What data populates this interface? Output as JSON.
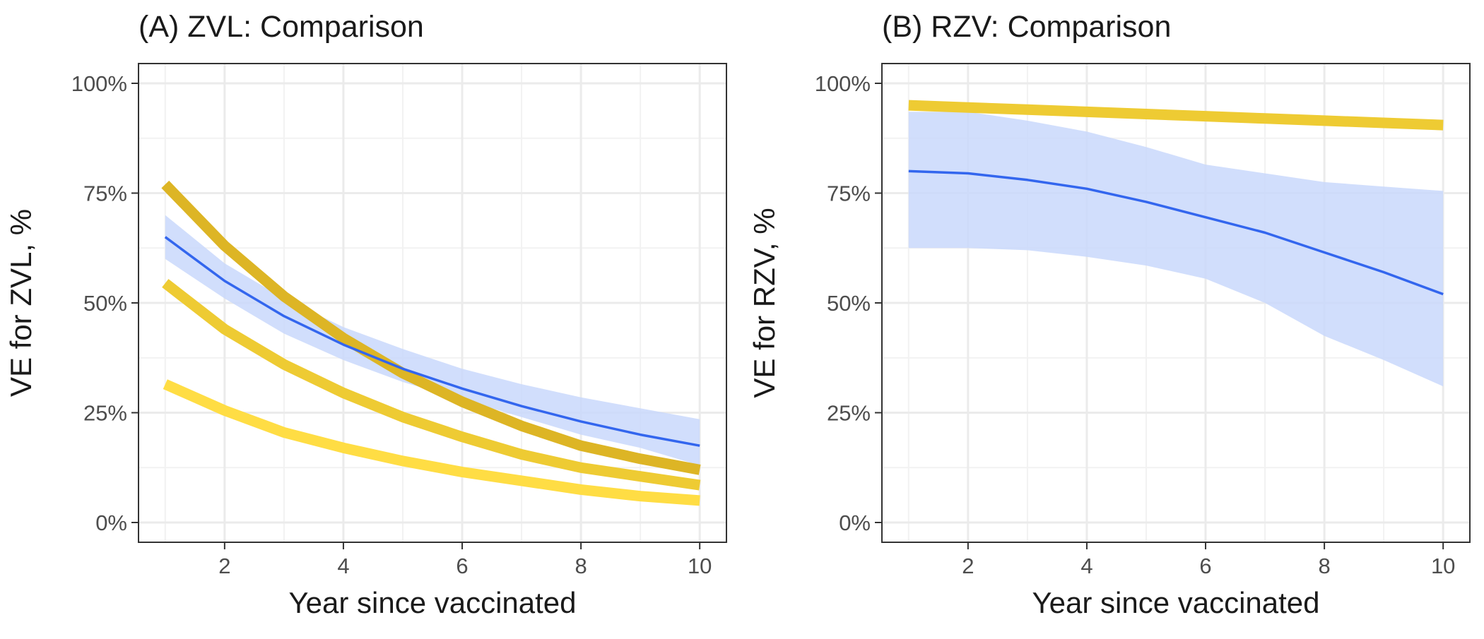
{
  "chart_data": [
    {
      "type": "line",
      "title": "(A) ZVL: Comparison",
      "xlabel": "Year since vaccinated",
      "ylabel": "VE for ZVL, %",
      "xlim": [
        0.55,
        10.45
      ],
      "ylim": [
        -4.5,
        104.5
      ],
      "x_ticks": [
        2,
        4,
        6,
        8,
        10
      ],
      "y_ticks": [
        0,
        25,
        50,
        75,
        100
      ],
      "y_tick_labels": [
        "0%",
        "25%",
        "50%",
        "75%",
        "100%"
      ],
      "grid": true,
      "legend": "none",
      "x": [
        1,
        2,
        3,
        4,
        5,
        6,
        7,
        8,
        9,
        10
      ],
      "band": {
        "color": "#c9d8fb",
        "lower": [
          60,
          51,
          43,
          37,
          32,
          28,
          24,
          20,
          17,
          13
        ],
        "upper": [
          70,
          59,
          51,
          44.5,
          39.5,
          35,
          31.5,
          28.5,
          26,
          23.5
        ]
      },
      "series": [
        {
          "color": "#ffdd44",
          "width": 15,
          "values": [
            31.5,
            25.5,
            20.5,
            17,
            14,
            11.5,
            9.5,
            7.5,
            6,
            5
          ]
        },
        {
          "color": "#eecb33",
          "width": 15,
          "values": [
            54.5,
            44,
            36,
            29.5,
            24,
            19.5,
            15.5,
            12.5,
            10.5,
            8.5
          ]
        },
        {
          "color": "#ddb525",
          "width": 15,
          "values": [
            77,
            63,
            51.5,
            42,
            34,
            27.5,
            22,
            17.5,
            14.5,
            12
          ]
        },
        {
          "color": "#3366ee",
          "width": 3.5,
          "values": [
            65,
            55,
            47,
            40.5,
            35,
            30.5,
            26.5,
            23,
            20,
            17.5
          ]
        }
      ]
    },
    {
      "type": "line",
      "title": "(B) RZV: Comparison",
      "xlabel": "Year since vaccinated",
      "ylabel": "VE for RZV, %",
      "xlim": [
        0.55,
        10.45
      ],
      "ylim": [
        -4.5,
        104.5
      ],
      "x_ticks": [
        2,
        4,
        6,
        8,
        10
      ],
      "y_ticks": [
        0,
        25,
        50,
        75,
        100
      ],
      "y_tick_labels": [
        "0%",
        "25%",
        "50%",
        "75%",
        "100%"
      ],
      "grid": true,
      "legend": "none",
      "x": [
        1,
        2,
        3,
        4,
        5,
        6,
        7,
        8,
        9,
        10
      ],
      "band": {
        "color": "#c9d8fb",
        "lower": [
          62.5,
          62.5,
          62,
          60.5,
          58.5,
          55.5,
          50,
          42.5,
          37,
          31
        ],
        "upper": [
          93.5,
          93.5,
          91.5,
          89,
          85.5,
          81.5,
          79.5,
          77.5,
          76.5,
          75.5
        ]
      },
      "series": [
        {
          "color": "#eecb33",
          "width": 15,
          "values": [
            95,
            94.5,
            94,
            93.5,
            93,
            92.5,
            92,
            91.5,
            91,
            90.5
          ]
        },
        {
          "color": "#3366ee",
          "width": 3.5,
          "values": [
            80,
            79.5,
            78,
            76,
            73,
            69.5,
            66,
            61.5,
            57,
            52
          ]
        }
      ]
    }
  ]
}
